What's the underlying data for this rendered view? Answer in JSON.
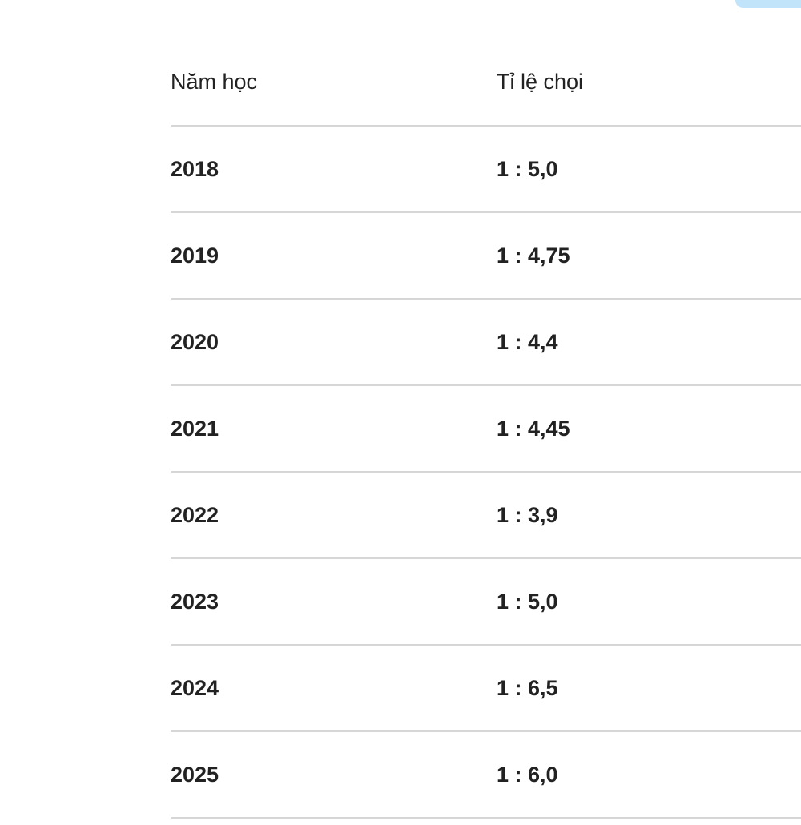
{
  "table": {
    "headers": [
      "Năm học",
      "Tỉ lệ chọi"
    ],
    "rows": [
      [
        "2018",
        "1 : 5,0"
      ],
      [
        "2019",
        "1 : 4,75"
      ],
      [
        "2020",
        "1 : 4,4"
      ],
      [
        "2021",
        "1 : 4,45"
      ],
      [
        "2022",
        "1 : 3,9"
      ],
      [
        "2023",
        "1 : 5,0"
      ],
      [
        "2024",
        "1 : 6,5"
      ],
      [
        "2025",
        "1 : 6,0"
      ]
    ]
  },
  "colors": {
    "accent": "#c2e4fb",
    "divider": "#d6d6d6",
    "text": "#222222"
  }
}
